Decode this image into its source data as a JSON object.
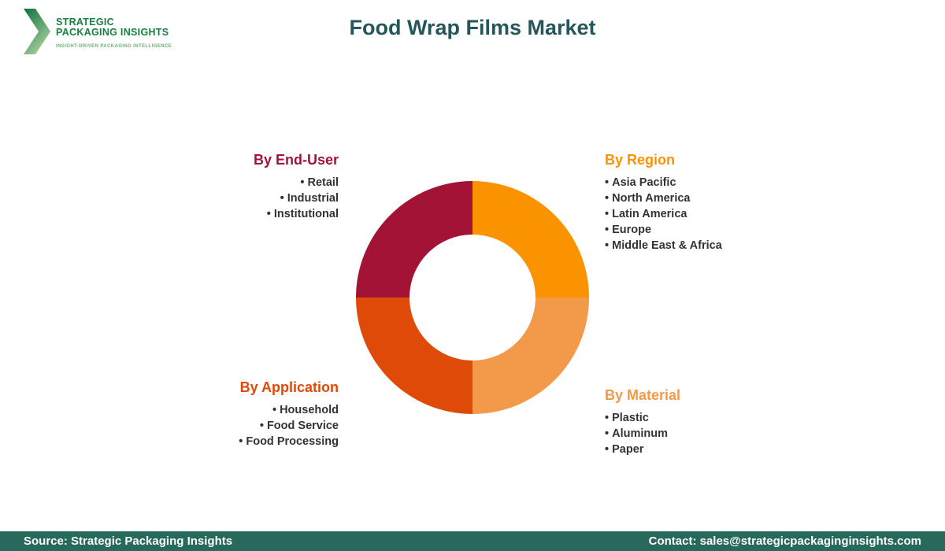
{
  "brand": {
    "line1": "STRATEGIC",
    "line2": "PACKAGING INSIGHTS",
    "tagline": "INSIGHT-DRIVEN PACKAGING INTELLIGENCE",
    "text_color": "#15813d",
    "tagline_color": "#6fae71",
    "chevron_color_dark": "#10713a",
    "chevron_color_light": "#a6cf9f"
  },
  "header": {
    "title": "Food Wrap Films Market",
    "title_color": "#24565c"
  },
  "categories": [
    {
      "label": "By End-User",
      "color": "#a21335",
      "position": "top-left",
      "items": [
        "Retail",
        "Industrial",
        "Institutional"
      ]
    },
    {
      "label": "By Region",
      "color": "#fb9300",
      "position": "top-right",
      "items": [
        "Asia Pacific",
        "North America",
        "Latin America",
        "Europe",
        "Middle East & Africa"
      ]
    },
    {
      "label": "By Application",
      "color": "#e04a08",
      "position": "bottom-left",
      "items": [
        "Household",
        "Food Service",
        "Food Processing"
      ]
    },
    {
      "label": "By Material",
      "color": "#f2994a",
      "position": "bottom-right",
      "items": [
        "Plastic",
        "Aluminum",
        "Paper"
      ]
    }
  ],
  "chart_data": {
    "type": "pie",
    "subtype": "donut",
    "segments": [
      {
        "label": "By End-User",
        "value_pct": 25,
        "color": "#a21335",
        "start_angle": 270,
        "end_angle": 360
      },
      {
        "label": "By Region",
        "value_pct": 25,
        "color": "#fb9300",
        "start_angle": 0,
        "end_angle": 90
      },
      {
        "label": "By Material",
        "value_pct": 25,
        "color": "#f2994a",
        "start_angle": 90,
        "end_angle": 180
      },
      {
        "label": "By Application",
        "value_pct": 25,
        "color": "#e04a08",
        "start_angle": 180,
        "end_angle": 270
      }
    ],
    "inner_radius_ratio": 0.54,
    "legend_position": "none",
    "data_labels": "none"
  },
  "footer": {
    "source": "Source: Strategic Packaging Insights",
    "contact": "Contact: sales@strategicpackaginginsights.com",
    "bg_color": "#27695a",
    "text_color": "#ffffff"
  }
}
